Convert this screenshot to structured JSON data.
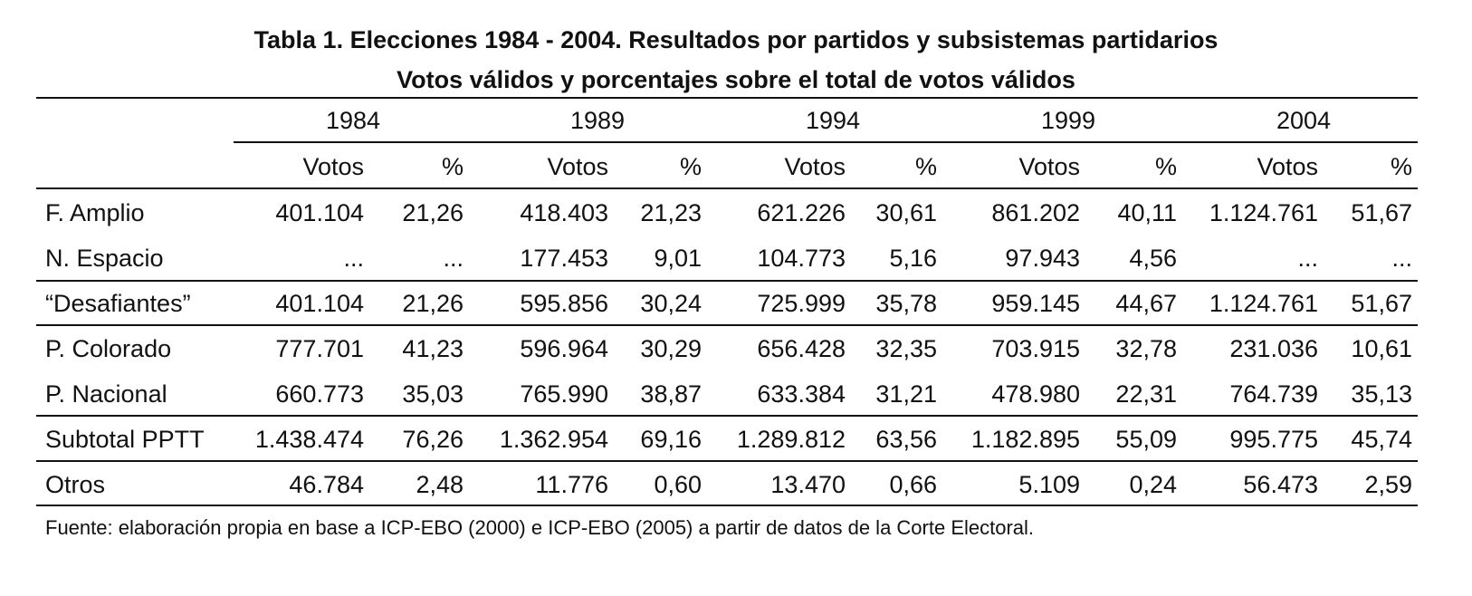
{
  "title": [
    "Tabla 1. Elecciones 1984 - 2004. Resultados por partidos y subsistemas partidarios",
    "Votos válidos y porcentajes sobre el total de votos válidos"
  ],
  "table": {
    "years": [
      "1984",
      "1989",
      "1994",
      "1999",
      "2004"
    ],
    "subheader": [
      "Votos",
      "%",
      "Votos",
      "%",
      "Votos",
      "%",
      "Votos",
      "%",
      "Votos",
      "%"
    ],
    "rows": [
      [
        "F. Amplio",
        "401.104",
        "21,26",
        "418.403",
        "21,23",
        "621.226",
        "30,61",
        "861.202",
        "40,11",
        "1.124.761",
        "51,67"
      ],
      [
        "N. Espacio",
        "...",
        "...",
        "177.453",
        "9,01",
        "104.773",
        "5,16",
        "97.943",
        "4,56",
        "...",
        "..."
      ],
      [
        "“Desafiantes”",
        "401.104",
        "21,26",
        "595.856",
        "30,24",
        "725.999",
        "35,78",
        "959.145",
        "44,67",
        "1.124.761",
        "51,67"
      ],
      [
        "P. Colorado",
        "777.701",
        "41,23",
        "596.964",
        "30,29",
        "656.428",
        "32,35",
        "703.915",
        "32,78",
        "231.036",
        "10,61"
      ],
      [
        "P. Nacional",
        "660.773",
        "35,03",
        "765.990",
        "38,87",
        "633.384",
        "31,21",
        "478.980",
        "22,31",
        "764.739",
        "35,13"
      ],
      [
        "Subtotal PPTT",
        "1.438.474",
        "76,26",
        "1.362.954",
        "69,16",
        "1.289.812",
        "63,56",
        "1.182.895",
        "55,09",
        "995.775",
        "45,74"
      ],
      [
        "Otros",
        "46.784",
        "2,48",
        "11.776",
        "0,60",
        "13.470",
        "0,66",
        "5.109",
        "0,24",
        "56.473",
        "2,59"
      ]
    ]
  },
  "footnote": "Fuente: elaboración propia en base a ICP-EBO (2000) e ICP-EBO (2005) a partir de datos de la Corte Electoral."
}
